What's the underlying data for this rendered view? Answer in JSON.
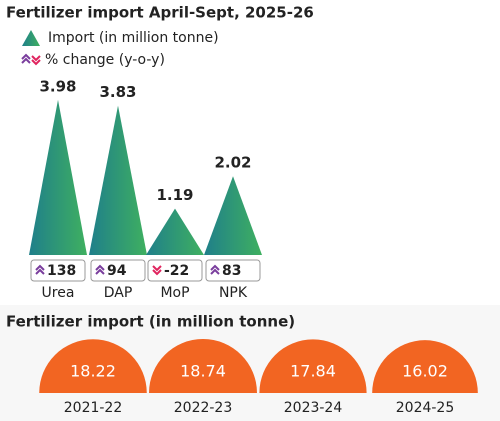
{
  "chart_data": [
    {
      "type": "triangle",
      "title": "Fertilizer import April-Sept, 2025-26",
      "categories": [
        "Urea",
        "DAP",
        "MoP",
        "NPK"
      ],
      "series": [
        {
          "name": "Import (in million tonne)",
          "color": "#2f9d6a",
          "values": [
            3.98,
            3.83,
            1.19,
            2.02
          ]
        },
        {
          "name": "% change (y-o-y)",
          "color": "#7a3e9d",
          "negative_color": "#e0245e",
          "values": [
            138,
            94,
            -22,
            83
          ]
        }
      ]
    },
    {
      "type": "semicircle",
      "title": "Fertilizer import (in million tonne)",
      "categories": [
        "2021-22",
        "2022-23",
        "2023-24",
        "2024-25"
      ],
      "values": [
        18.22,
        18.74,
        17.84,
        16.02
      ],
      "color": "#f26522"
    }
  ]
}
